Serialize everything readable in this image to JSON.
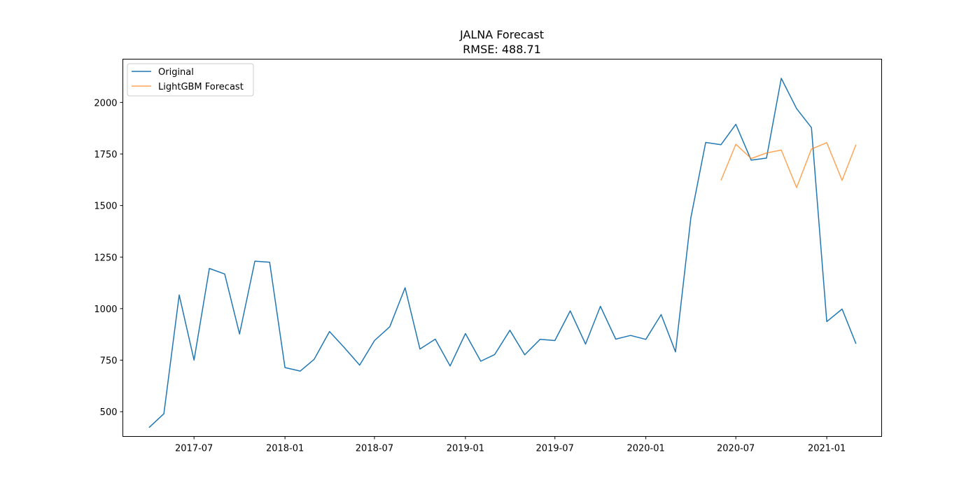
{
  "chart_data": {
    "type": "line",
    "title": "JALNA Forecast",
    "subtitle": "RMSE: 488.71",
    "xlabel": "",
    "ylabel": "",
    "xlim": [
      "2017-02-07",
      "2021-04-22"
    ],
    "ylim": [
      380,
      2210
    ],
    "x_ticks": [
      "2017-07",
      "2018-01",
      "2018-07",
      "2019-01",
      "2019-07",
      "2020-01",
      "2020-07",
      "2021-01"
    ],
    "y_ticks": [
      500,
      750,
      1000,
      1250,
      1500,
      1750,
      2000
    ],
    "grid": false,
    "legend_position": "top-left",
    "series": [
      {
        "name": "Original",
        "color": "#1f77b4",
        "x": [
          "2017-04",
          "2017-05",
          "2017-06",
          "2017-07",
          "2017-08",
          "2017-09",
          "2017-10",
          "2017-11",
          "2017-12",
          "2018-01",
          "2018-02",
          "2018-03",
          "2018-04",
          "2018-05",
          "2018-06",
          "2018-07",
          "2018-08",
          "2018-09",
          "2018-10",
          "2018-11",
          "2018-12",
          "2019-01",
          "2019-02",
          "2019-03",
          "2019-04",
          "2019-05",
          "2019-06",
          "2019-07",
          "2019-08",
          "2019-09",
          "2019-10",
          "2019-11",
          "2019-12",
          "2020-01",
          "2020-02",
          "2020-03",
          "2020-04",
          "2020-05",
          "2020-06",
          "2020-07",
          "2020-08",
          "2020-09",
          "2020-10",
          "2020-11",
          "2020-12",
          "2021-01",
          "2021-02",
          "2021-03"
        ],
        "values": [
          423,
          490,
          1066,
          750,
          1195,
          1168,
          877,
          1230,
          1225,
          714,
          697,
          754,
          889,
          811,
          726,
          845,
          912,
          1101,
          804,
          852,
          722,
          879,
          745,
          777,
          895,
          776,
          851,
          845,
          989,
          828,
          1011,
          852,
          870,
          851,
          971,
          790,
          1440,
          1806,
          1795,
          1894,
          1720,
          1730,
          2117,
          1970,
          1878,
          937,
          998,
          830
        ]
      },
      {
        "name": "LightGBM Forecast",
        "color": "#ff7f0e",
        "x": [
          "2020-06",
          "2020-07",
          "2020-08",
          "2020-09",
          "2020-10",
          "2020-11",
          "2020-12",
          "2021-01",
          "2021-02",
          "2021-03"
        ],
        "values": [
          1622,
          1797,
          1728,
          1755,
          1769,
          1587,
          1774,
          1805,
          1622,
          1795
        ]
      }
    ]
  }
}
